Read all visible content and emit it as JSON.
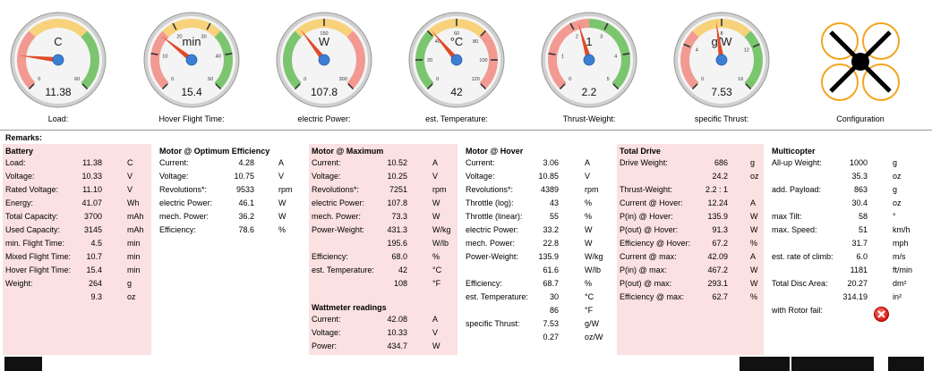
{
  "gauges": [
    {
      "id": "load",
      "unit": "C",
      "value": "11.38",
      "caption": "Load:",
      "ticks": [
        "0",
        "60"
      ],
      "needle_fraction": 0.19,
      "bands": [
        "red",
        "yellow",
        "green"
      ]
    },
    {
      "id": "hover-time",
      "unit": "min",
      "value": "15.4",
      "caption": "Hover Flight Time:",
      "ticks": [
        "0",
        "10",
        "20",
        "30",
        "40",
        "50"
      ],
      "needle_fraction": 0.31,
      "bands": [
        "red",
        "yellow",
        "green"
      ]
    },
    {
      "id": "electric-power",
      "unit": "W",
      "value": "107.8",
      "caption": "electric Power:",
      "ticks": [
        "0",
        "150",
        "300"
      ],
      "needle_fraction": 0.36,
      "bands": [
        "green",
        "yellow",
        "red"
      ]
    },
    {
      "id": "temperature",
      "unit": "°C",
      "value": "42",
      "caption": "est. Temperature:",
      "ticks": [
        "0",
        "20",
        "40",
        "60",
        "80",
        "100",
        "120"
      ],
      "needle_fraction": 0.35,
      "bands": [
        "green",
        "yellow",
        "red"
      ]
    },
    {
      "id": "thrust-weight",
      "unit": "1",
      "value": "2.2",
      "caption": "Thrust-Weight:",
      "ticks": [
        "0",
        "1",
        "2",
        "3",
        "4",
        "5"
      ],
      "needle_fraction": 0.44,
      "bands": [
        "red",
        "green"
      ]
    },
    {
      "id": "specific-thrust",
      "unit": "g/W",
      "value": "7.53",
      "caption": "specific Thrust:",
      "ticks": [
        "0",
        "4",
        "8",
        "12",
        "16"
      ],
      "needle_fraction": 0.47,
      "bands": [
        "red",
        "yellow",
        "green"
      ]
    }
  ],
  "config": {
    "caption": "Configuration",
    "icon": "quadcopter-x-icon"
  },
  "remarks_label": "Remarks:",
  "panels": {
    "battery": {
      "title": "Battery",
      "rows": [
        {
          "label": "Load:",
          "value": "11.38",
          "unit": "C"
        },
        {
          "label": "Voltage:",
          "value": "10.33",
          "unit": "V"
        },
        {
          "label": "Rated Voltage:",
          "value": "11.10",
          "unit": "V"
        },
        {
          "label": "Energy:",
          "value": "41.07",
          "unit": "Wh"
        },
        {
          "label": "Total Capacity:",
          "value": "3700",
          "unit": "mAh"
        },
        {
          "label": "Used Capacity:",
          "value": "3145",
          "unit": "mAh"
        },
        {
          "label": "min. Flight Time:",
          "value": "4.5",
          "unit": "min"
        },
        {
          "label": "Mixed Flight Time:",
          "value": "10.7",
          "unit": "min"
        },
        {
          "label": "Hover Flight Time:",
          "value": "15.4",
          "unit": "min"
        },
        {
          "label": "Weight:",
          "value": "264",
          "unit": "g"
        },
        {
          "label": "",
          "value": "9.3",
          "unit": "oz"
        }
      ]
    },
    "optimum": {
      "title": "Motor @ Optimum Efficiency",
      "rows": [
        {
          "label": "Current:",
          "value": "4.28",
          "unit": "A"
        },
        {
          "label": "Voltage:",
          "value": "10.75",
          "unit": "V"
        },
        {
          "label": "Revolutions*:",
          "value": "9533",
          "unit": "rpm"
        },
        {
          "label": "electric Power:",
          "value": "46.1",
          "unit": "W"
        },
        {
          "label": "mech. Power:",
          "value": "36.2",
          "unit": "W"
        },
        {
          "label": "Efficiency:",
          "value": "78.6",
          "unit": "%"
        }
      ]
    },
    "maximum": {
      "title": "Motor @ Maximum",
      "rows": [
        {
          "label": "Current:",
          "value": "10.52",
          "unit": "A"
        },
        {
          "label": "Voltage:",
          "value": "10.25",
          "unit": "V"
        },
        {
          "label": "Revolutions*:",
          "value": "7251",
          "unit": "rpm"
        },
        {
          "label": "electric Power:",
          "value": "107.8",
          "unit": "W"
        },
        {
          "label": "mech. Power:",
          "value": "73.3",
          "unit": "W"
        },
        {
          "label": "Power-Weight:",
          "value": "431.3",
          "unit": "W/kg"
        },
        {
          "label": "",
          "value": "195.6",
          "unit": "W/lb"
        },
        {
          "label": "Efficiency:",
          "value": "68.0",
          "unit": "%"
        },
        {
          "label": "est. Temperature:",
          "value": "42",
          "unit": "°C"
        },
        {
          "label": "",
          "value": "108",
          "unit": "°F"
        }
      ]
    },
    "wattmeter": {
      "title": "Wattmeter readings",
      "rows": [
        {
          "label": "Current:",
          "value": "42.08",
          "unit": "A"
        },
        {
          "label": "Voltage:",
          "value": "10.33",
          "unit": "V"
        },
        {
          "label": "Power:",
          "value": "434.7",
          "unit": "W"
        }
      ]
    },
    "hover": {
      "title": "Motor @ Hover",
      "rows": [
        {
          "label": "Current:",
          "value": "3.06",
          "unit": "A"
        },
        {
          "label": "Voltage:",
          "value": "10.85",
          "unit": "V"
        },
        {
          "label": "Revolutions*:",
          "value": "4389",
          "unit": "rpm"
        },
        {
          "label": "Throttle (log):",
          "value": "43",
          "unit": "%"
        },
        {
          "label": "Throttle (linear):",
          "value": "55",
          "unit": "%"
        },
        {
          "label": "electric Power:",
          "value": "33.2",
          "unit": "W"
        },
        {
          "label": "mech. Power:",
          "value": "22.8",
          "unit": "W"
        },
        {
          "label": "Power-Weight:",
          "value": "135.9",
          "unit": "W/kg"
        },
        {
          "label": "",
          "value": "61.6",
          "unit": "W/lb"
        },
        {
          "label": "Efficiency:",
          "value": "68.7",
          "unit": "%"
        },
        {
          "label": "est. Temperature:",
          "value": "30",
          "unit": "°C"
        },
        {
          "label": "",
          "value": "86",
          "unit": "°F"
        },
        {
          "label": "specific Thrust:",
          "value": "7.53",
          "unit": "g/W"
        },
        {
          "label": "",
          "value": "0.27",
          "unit": "oz/W"
        }
      ]
    },
    "drive": {
      "title": "Total Drive",
      "rows": [
        {
          "label": "Drive Weight:",
          "value": "686",
          "unit": "g"
        },
        {
          "label": "",
          "value": "24.2",
          "unit": "oz"
        },
        {
          "label": "Thrust-Weight:",
          "value": "2.2 : 1",
          "unit": ""
        },
        {
          "label": "Current @ Hover:",
          "value": "12.24",
          "unit": "A"
        },
        {
          "label": "P(in) @ Hover:",
          "value": "135.9",
          "unit": "W"
        },
        {
          "label": "P(out) @ Hover:",
          "value": "91.3",
          "unit": "W"
        },
        {
          "label": "Efficiency @ Hover:",
          "value": "67.2",
          "unit": "%"
        },
        {
          "label": "Current @ max:",
          "value": "42.09",
          "unit": "A"
        },
        {
          "label": "P(in) @ max:",
          "value": "467.2",
          "unit": "W"
        },
        {
          "label": "P(out) @ max:",
          "value": "293.1",
          "unit": "W"
        },
        {
          "label": "Efficiency @ max:",
          "value": "62.7",
          "unit": "%"
        }
      ]
    },
    "multicopter": {
      "title": "Multicopter",
      "rows": [
        {
          "label": "All-up Weight:",
          "value": "1000",
          "unit": "g"
        },
        {
          "label": "",
          "value": "35.3",
          "unit": "oz"
        },
        {
          "label": "add. Payload:",
          "value": "863",
          "unit": "g"
        },
        {
          "label": "",
          "value": "30.4",
          "unit": "oz"
        },
        {
          "label": "max Tilt:",
          "value": "58",
          "unit": "°"
        },
        {
          "label": "max. Speed:",
          "value": "51",
          "unit": "km/h"
        },
        {
          "label": "",
          "value": "31.7",
          "unit": "mph"
        },
        {
          "label": "est. rate of climb:",
          "value": "6.0",
          "unit": "m/s"
        },
        {
          "label": "",
          "value": "1181",
          "unit": "ft/min"
        },
        {
          "label": "Total Disc Area:",
          "value": "20.27",
          "unit": "dm²"
        },
        {
          "label": "",
          "value": "314.19",
          "unit": "in²"
        },
        {
          "label": "with Rotor fail:",
          "value": "",
          "unit": ""
        }
      ]
    }
  },
  "colors": {
    "panel_pink": "#fbe1e1",
    "gauge_green": "#7cc56f",
    "gauge_yellow": "#f7d27a",
    "gauge_red": "#f29a92",
    "needle": "#e04a2a",
    "hub": "#3b7fd4"
  }
}
